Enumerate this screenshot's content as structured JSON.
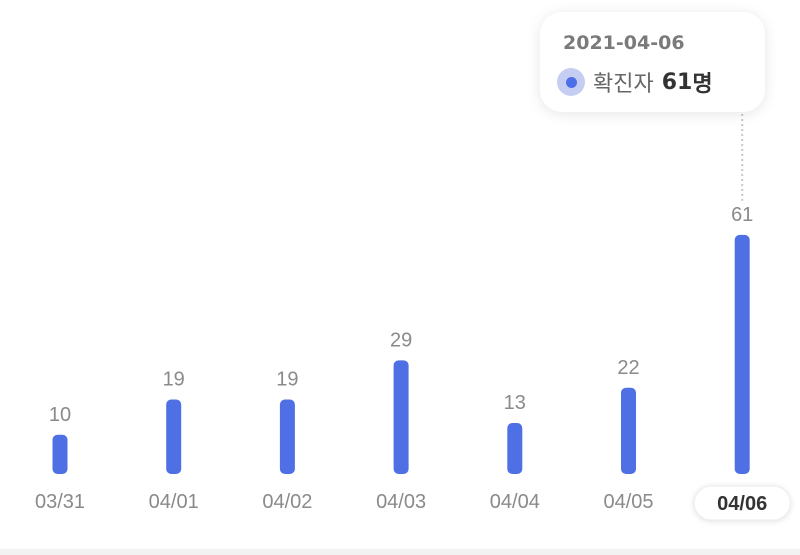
{
  "chart_data": {
    "type": "bar",
    "categories": [
      "03/31",
      "04/01",
      "04/02",
      "04/03",
      "04/04",
      "04/05",
      "04/06"
    ],
    "values": [
      10,
      19,
      19,
      29,
      13,
      22,
      61
    ],
    "data_labels": [
      "10",
      "19",
      "19",
      "29",
      "13",
      "22",
      "61"
    ],
    "selected_index": 6,
    "bar_color": "#4f6fe5",
    "label_color": "#8a8a8a",
    "grid": false,
    "legend": "none"
  },
  "tooltip": {
    "date": "2021-04-06",
    "series_label": "확진자",
    "value": "61",
    "unit": "명"
  }
}
